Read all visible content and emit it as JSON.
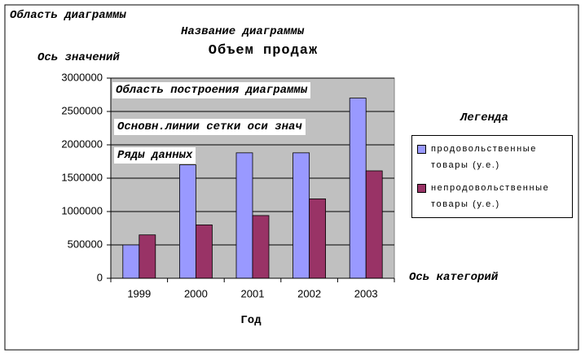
{
  "chart_data": {
    "type": "bar",
    "title": "Объем продаж",
    "x_label": "Год",
    "categories": [
      "1999",
      "2000",
      "2001",
      "2002",
      "2003"
    ],
    "series": [
      {
        "name": "продовольственные товары (у.е.)",
        "color": "#9999ff",
        "values": [
          500000,
          1700000,
          1880000,
          1880000,
          2700000
        ]
      },
      {
        "name": "непродовольственные товары (у.е.)",
        "color": "#993366",
        "values": [
          650000,
          800000,
          940000,
          1190000,
          1610000
        ]
      }
    ],
    "ylim": [
      0,
      3000000
    ],
    "yticks": [
      0,
      500000,
      1000000,
      1500000,
      2000000,
      2500000,
      3000000
    ],
    "grid": true,
    "legend": "right",
    "annotations": [
      "Область диаграммы",
      "Название диаграммы",
      "Ось значений",
      "Область построения диаграммы",
      "Основн.линии сетки оси знач",
      "Ряды данных",
      "Легенда",
      "Ось категорий"
    ]
  }
}
